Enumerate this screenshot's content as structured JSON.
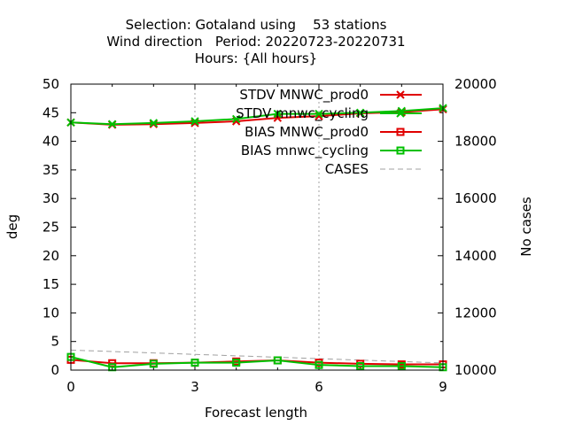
{
  "chart_data": {
    "type": "line",
    "title": [
      "Selection: Gotaland using    53 stations",
      "Wind direction   Period: 20220723-20220731",
      "Hours: {All hours}"
    ],
    "xlabel": "Forecast length",
    "ylabel": "deg",
    "y2label": "No cases",
    "xlim": [
      0,
      9
    ],
    "ylim": [
      0,
      50
    ],
    "y2lim": [
      10000,
      20000
    ],
    "x_ticks": [
      0,
      3,
      6,
      9
    ],
    "y_ticks": [
      0,
      5,
      10,
      15,
      20,
      25,
      30,
      35,
      40,
      45,
      50
    ],
    "y2_ticks": [
      10000,
      12000,
      14000,
      16000,
      18000,
      20000
    ],
    "grid": true,
    "legend_position": "top-right",
    "x": [
      0,
      1,
      2,
      3,
      4,
      5,
      6,
      7,
      8,
      9
    ],
    "series": [
      {
        "name": "STDV MNWC_prod0",
        "axis": "y",
        "color": "#e00000",
        "marker": "x",
        "values": [
          43.3,
          42.9,
          43.0,
          43.2,
          43.5,
          44.1,
          44.4,
          44.9,
          45.1,
          45.6
        ]
      },
      {
        "name": "STDV mnwc_cycling",
        "axis": "y",
        "color": "#00c000",
        "marker": "x",
        "values": [
          43.3,
          43.0,
          43.2,
          43.5,
          43.9,
          44.8,
          44.8,
          45.0,
          45.3,
          45.8
        ]
      },
      {
        "name": "BIAS MNWC_prod0",
        "axis": "y",
        "color": "#e00000",
        "marker": "square",
        "values": [
          1.8,
          1.2,
          1.2,
          1.3,
          1.5,
          1.7,
          1.3,
          1.1,
          1.0,
          1.0
        ]
      },
      {
        "name": "BIAS mnwc_cycling",
        "axis": "y",
        "color": "#00c000",
        "marker": "square",
        "values": [
          2.3,
          0.5,
          1.1,
          1.3,
          1.3,
          1.7,
          0.9,
          0.7,
          0.7,
          0.5
        ]
      },
      {
        "name": "CASES",
        "axis": "y2",
        "color": "#a0a0a0",
        "marker": "none",
        "dashed": true,
        "values": [
          10700,
          10650,
          10600,
          10550,
          10500,
          10450,
          10400,
          10350,
          10300,
          10250
        ]
      }
    ]
  }
}
